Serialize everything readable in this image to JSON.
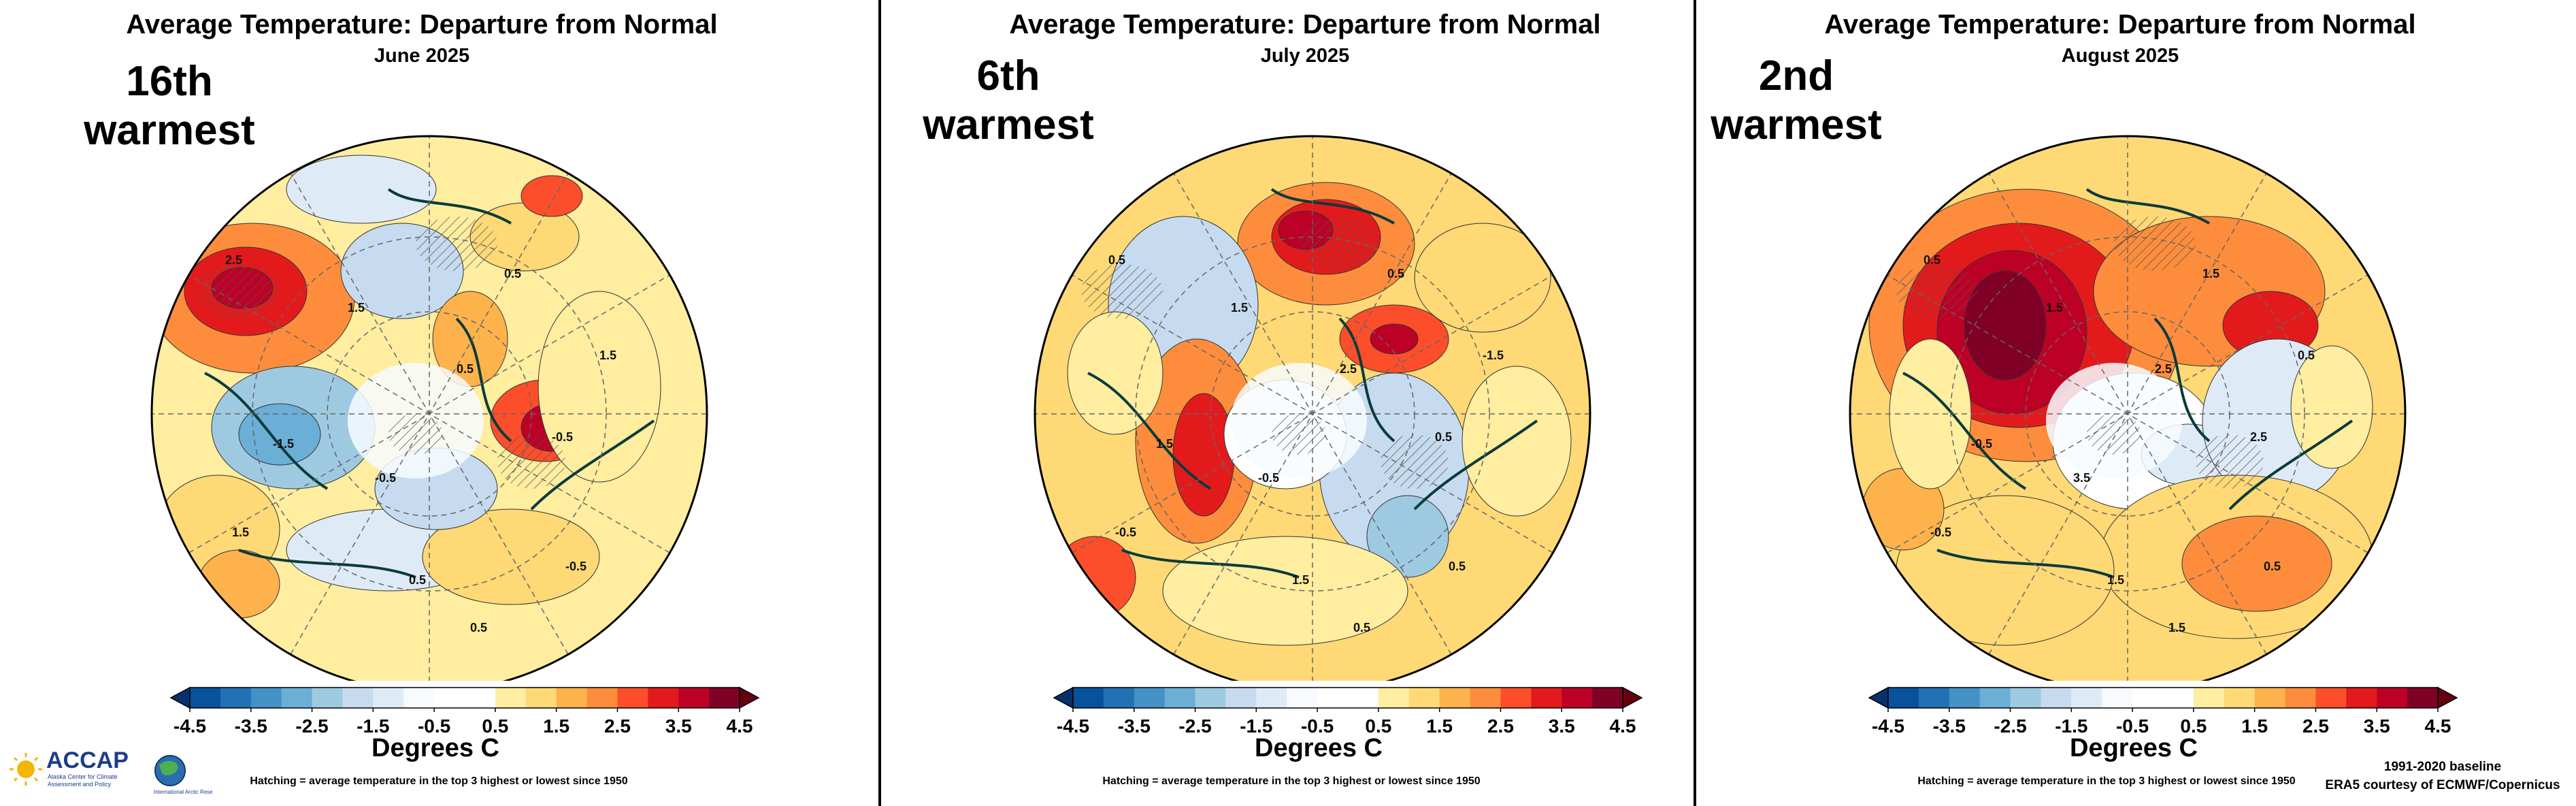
{
  "panels": [
    {
      "title": "Average Temperature: Departure from Normal",
      "subtitle": "June 2025",
      "rank_line1": "16th",
      "rank_line2": "warmest",
      "contour_labels": [
        "2.5",
        "1.5",
        "0.5",
        "-0.5",
        "-1.5",
        "0.5",
        "1.5",
        "-0.5",
        "0.5",
        "-0.5",
        "1.5",
        "0.5"
      ]
    },
    {
      "title": "Average Temperature: Departure from Normal",
      "subtitle": "July 2025",
      "rank_line1": "6th",
      "rank_line2": "warmest",
      "contour_labels": [
        "0.5",
        "1.5",
        "2.5",
        "-0.5",
        "1.5",
        "0.5",
        "-1.5",
        "0.5",
        "1.5",
        "0.5",
        "-0.5",
        "0.5"
      ]
    },
    {
      "title": "Average Temperature: Departure from Normal",
      "subtitle": "August 2025",
      "rank_line1": "2nd",
      "rank_line2": "warmest",
      "contour_labels": [
        "0.5",
        "1.5",
        "2.5",
        "3.5",
        "-0.5",
        "1.5",
        "0.5",
        "2.5",
        "1.5",
        "0.5",
        "-0.5",
        "1.5"
      ]
    }
  ],
  "colorbar": {
    "ticks": [
      "-4.5",
      "-3.5",
      "-2.5",
      "-1.5",
      "-0.5",
      "0.5",
      "1.5",
      "2.5",
      "3.5",
      "4.5"
    ],
    "colors": [
      "#08519c",
      "#2171b5",
      "#4292c6",
      "#6baed6",
      "#9ecae1",
      "#c6dbef",
      "#deebf7",
      "#f7fbff",
      "#ffffff",
      "#ffffff",
      "#ffeda0",
      "#fed976",
      "#feb24c",
      "#fd8d3c",
      "#fc4e2a",
      "#e31a1c",
      "#bd0026",
      "#800026"
    ],
    "low_arrow_color": "#08306b",
    "high_arrow_color": "#67000d",
    "label": "Degrees C"
  },
  "hatching_note": "Hatching = average temperature in the top 3 highest or lowest since 1950",
  "credits": {
    "line1": "1991-2020 baseline",
    "line2": "ERA5 courtesy of ECMWF/Copernicus"
  },
  "logo": {
    "name": "ACCAP",
    "tagline1": "Alaska Center for Climate",
    "tagline2": "Assessment and Policy",
    "partner_text": "International Arctic Research Center"
  }
}
